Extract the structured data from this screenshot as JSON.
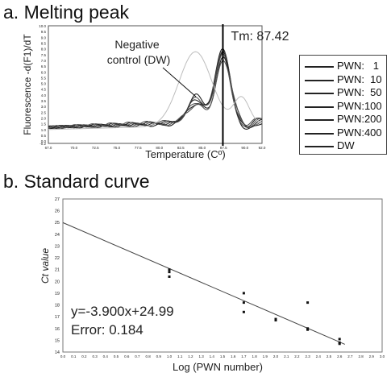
{
  "chart_data": [
    {
      "type": "line",
      "title": "a. Melting peak",
      "xlabel": "Temperature (Cº)",
      "ylabel": "Fluorescence -d(F1)/dT",
      "xlim": [
        67.0,
        92.0
      ],
      "ylim": [
        -0.2,
        10.0
      ],
      "xticks": [
        "67.0",
        "70.0",
        "72.5",
        "75.0",
        "77.5",
        "80.0",
        "82.5",
        "85.0",
        "87.5",
        "90.0",
        "92.0"
      ],
      "yticks": [
        "-0.2",
        "0.0",
        "0.5",
        "1.0",
        "1.5",
        "2.0",
        "2.5",
        "3.0",
        "3.5",
        "4.0",
        "4.5",
        "5.0",
        "5.5",
        "6.0",
        "6.5",
        "7.0",
        "7.5",
        "8.0",
        "8.5",
        "9.0",
        "9.5",
        "10.0"
      ],
      "annotations": [
        {
          "text": "Tm: 87.42",
          "x": 87.42
        },
        {
          "text": "Negative\ncontrol (DW)"
        }
      ],
      "legend_placement": "right",
      "series": [
        {
          "name": "PWN:   1",
          "peak_x": 87.4,
          "peak_y": 8.2,
          "shoulder_y": 4.3
        },
        {
          "name": "PWN:  10",
          "peak_x": 87.4,
          "peak_y": 7.9,
          "shoulder_y": 4.0
        },
        {
          "name": "PWN:  50",
          "peak_x": 87.4,
          "peak_y": 7.6,
          "shoulder_y": 3.8
        },
        {
          "name": "PWN:100",
          "peak_x": 87.4,
          "peak_y": 7.3,
          "shoulder_y": 3.5
        },
        {
          "name": "PWN:200",
          "peak_x": 87.5,
          "peak_y": 7.0,
          "shoulder_y": 3.3
        },
        {
          "name": "PWN:400",
          "peak_x": 87.5,
          "peak_y": 6.7,
          "shoulder_y": 3.1
        },
        {
          "name": "DW",
          "peak_x": 84.2,
          "peak_y": 7.6,
          "shoulder_y": 0
        }
      ],
      "baseline_y": 1.2
    },
    {
      "type": "scatter",
      "title": "b. Standard curve",
      "xlabel": "Log (PWN number)",
      "ylabel": "Ct value",
      "xlim": [
        0.0,
        3.0
      ],
      "ylim": [
        14,
        27
      ],
      "xticks": [
        "0.0",
        "0.1",
        "0.2",
        "0.3",
        "0.4",
        "0.5",
        "0.6",
        "0.7",
        "0.8",
        "0.9",
        "1.0",
        "1.1",
        "1.2",
        "1.3",
        "1.4",
        "1.5",
        "1.6",
        "1.7",
        "1.8",
        "1.9",
        "2.0",
        "2.1",
        "2.2",
        "2.3",
        "2.4",
        "2.5",
        "2.6",
        "2.7",
        "2.8",
        "2.9",
        "3.0"
      ],
      "yticks": [
        "14",
        "15",
        "16",
        "17",
        "18",
        "19",
        "20",
        "21",
        "22",
        "23",
        "24",
        "25",
        "26",
        "27"
      ],
      "points": [
        {
          "x": 1.0,
          "y": 21.0
        },
        {
          "x": 1.0,
          "y": 20.8
        },
        {
          "x": 1.0,
          "y": 20.4
        },
        {
          "x": 1.7,
          "y": 19.0
        },
        {
          "x": 1.7,
          "y": 18.2
        },
        {
          "x": 1.7,
          "y": 17.4
        },
        {
          "x": 2.0,
          "y": 16.8
        },
        {
          "x": 2.0,
          "y": 16.7
        },
        {
          "x": 2.3,
          "y": 18.2
        },
        {
          "x": 2.3,
          "y": 16.0
        },
        {
          "x": 2.3,
          "y": 15.9
        },
        {
          "x": 2.6,
          "y": 15.1
        },
        {
          "x": 2.6,
          "y": 14.8
        },
        {
          "x": 2.6,
          "y": 14.7
        }
      ],
      "fit": {
        "slope": -3.9,
        "intercept": 24.99
      },
      "equation_text": "y=-3.900x+24.99",
      "error_text": "Error: 0.184"
    }
  ]
}
